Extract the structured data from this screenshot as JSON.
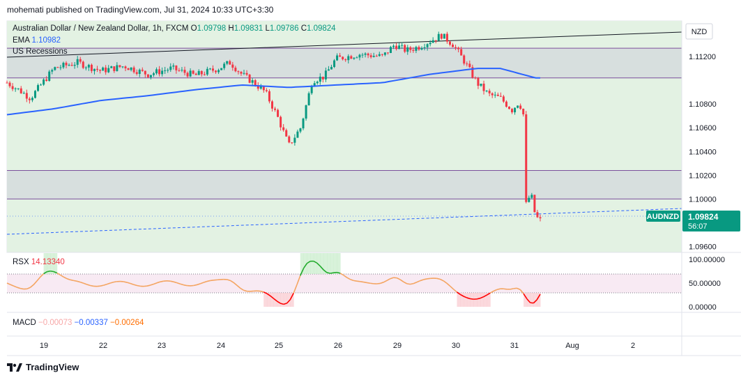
{
  "header": {
    "published": "mohemati published on TradingView.com, Jul 31, 2024 10:33 UTC+3:30"
  },
  "legend": {
    "symbol": "Australian Dollar / New Zealand Dollar, 1h, FXCM",
    "o_label": "O",
    "o_value": "1.09798",
    "h_label": "H",
    "h_value": "1.09831",
    "l_label": "L",
    "l_value": "1.09786",
    "c_label": "C",
    "c_value": "1.09824",
    "ema_label": "EMA",
    "ema_value": "1.10982",
    "recessions_label": "US Recessions"
  },
  "price_axis": {
    "currency": "NZD",
    "ticks": [
      "1.11200",
      "1.10800",
      "1.10600",
      "1.10400",
      "1.10200",
      "1.10000",
      "1.09600"
    ],
    "last_symbol": "AUDNZD",
    "last_price": "1.09824",
    "countdown": "56:07"
  },
  "rsx": {
    "label": "RSX",
    "value": "14.13340",
    "ticks": [
      "100.00000",
      "50.00000",
      "0.00000"
    ]
  },
  "macd": {
    "label": "MACD",
    "v1": "−0.00073",
    "v2": "−0.00337",
    "v3": "−0.00264"
  },
  "time_axis": {
    "ticks": [
      "19",
      "22",
      "23",
      "24",
      "25",
      "26",
      "29",
      "30",
      "31",
      "Aug",
      "2"
    ]
  },
  "footer": {
    "brand": "TradingView"
  },
  "colors": {
    "up": "#089981",
    "down": "#f23645",
    "ema": "#2962ff",
    "zone_fill": "#d1d4dc",
    "zone_line": "#7b4f9c",
    "bg_green": "#e3f2e3",
    "rsx_up": "#22ab2c",
    "rsx_mid": "#f4a460",
    "rsx_down": "#ff0000",
    "dashed": "#2962ff"
  },
  "chart_data": {
    "type": "candlestick",
    "ylim": [
      1.0955,
      1.115
    ],
    "zones": [
      [
        1.1102,
        1.1127
      ],
      [
        1.1,
        1.1024
      ]
    ],
    "price_path": [
      [
        0,
        1.1098
      ],
      [
        0.5,
        1.1092
      ],
      [
        1,
        1.1085
      ],
      [
        2,
        1.111
      ],
      [
        3,
        1.1115
      ],
      [
        4,
        1.1108
      ],
      [
        5,
        1.1112
      ],
      [
        6,
        1.1105
      ],
      [
        7,
        1.111
      ],
      [
        8,
        1.1104
      ],
      [
        9,
        1.111
      ],
      [
        9.5,
        1.1115
      ],
      [
        10,
        1.1105
      ],
      [
        10.5,
        1.1098
      ],
      [
        11,
        1.109
      ],
      [
        11.5,
        1.107
      ],
      [
        12,
        1.1045
      ],
      [
        12.5,
        1.106
      ],
      [
        13,
        1.11
      ],
      [
        13.5,
        1.1103
      ],
      [
        14,
        1.1118
      ],
      [
        15,
        1.1122
      ],
      [
        16,
        1.112
      ],
      [
        16.5,
        1.113
      ],
      [
        17,
        1.1125
      ],
      [
        17.5,
        1.1128
      ],
      [
        18,
        1.1133
      ],
      [
        18.5,
        1.1138
      ],
      [
        19,
        1.113
      ],
      [
        19.5,
        1.1115
      ],
      [
        20,
        1.1098
      ],
      [
        20.5,
        1.1088
      ],
      [
        21,
        1.1085
      ],
      [
        21.5,
        1.1075
      ],
      [
        21.8,
        1.1082
      ],
      [
        22,
        1.107
      ],
      [
        22.1,
        1.0995
      ],
      [
        22.3,
        1.1005
      ],
      [
        22.5,
        1.0985
      ],
      [
        22.7,
        1.0982
      ]
    ],
    "ema_path": [
      [
        0,
        1.1071
      ],
      [
        2,
        1.1076
      ],
      [
        4,
        1.1083
      ],
      [
        6,
        1.1087
      ],
      [
        8,
        1.1092
      ],
      [
        10,
        1.1096
      ],
      [
        12,
        1.1094
      ],
      [
        13,
        1.1095
      ],
      [
        14,
        1.1096
      ],
      [
        16,
        1.1098
      ],
      [
        18,
        1.1105
      ],
      [
        20,
        1.111
      ],
      [
        21,
        1.111
      ],
      [
        22.5,
        1.1102
      ]
    ],
    "day_ticks": [
      "19",
      "22",
      "23",
      "24",
      "25",
      "26",
      "29",
      "30",
      "31",
      "Aug",
      "2"
    ]
  }
}
